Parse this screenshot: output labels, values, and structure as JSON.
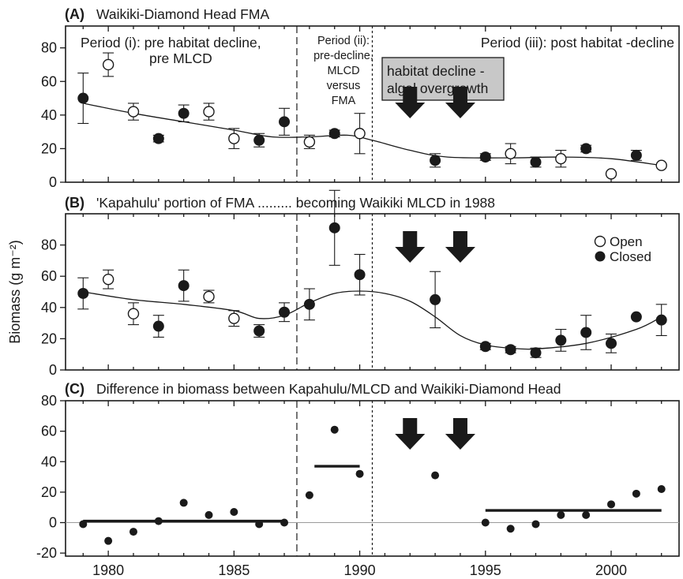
{
  "chart_data": {
    "type": "scatter",
    "y_axis_title": "Biomass (g m⁻²)",
    "x_ticks": [
      1980,
      1985,
      1990,
      1995,
      2000
    ],
    "x_range": [
      1978.3,
      2002.7
    ],
    "period_boundaries": {
      "dashed": 1987.5,
      "dotted": 1990.5
    },
    "arrow_years": [
      1992,
      1994
    ],
    "colors": {
      "ink": "#1a1a1a",
      "callout_fill": "#c8c8c8",
      "zero_line": "#9a9a9a",
      "open_marker": "#ffffff"
    },
    "legend": {
      "open": "Open",
      "closed": "Closed"
    },
    "panels": [
      {
        "letter": "(A)",
        "title": "Waikiki-Diamond Head FMA",
        "ylim": [
          0,
          93
        ],
        "y_ticks": [
          0,
          20,
          40,
          60,
          80
        ],
        "period_labels": {
          "p1_line1": "Period (i): pre habitat decline,",
          "p1_line2": "pre MLCD",
          "p2_lines": [
            "Period (ii):",
            "pre-decline,",
            "MLCD",
            "versus",
            "FMA"
          ],
          "p3": "Period (iii): post habitat -decline"
        },
        "callout": {
          "line1": "habitat decline -",
          "line2": "algal overgrowth"
        },
        "points": [
          {
            "x": 1979,
            "y": 50,
            "err": 15,
            "filled": true
          },
          {
            "x": 1980,
            "y": 70,
            "err": 7,
            "filled": false
          },
          {
            "x": 1981,
            "y": 42,
            "err": 5,
            "filled": false
          },
          {
            "x": 1982,
            "y": 26,
            "err": 2,
            "filled": true
          },
          {
            "x": 1983,
            "y": 41,
            "err": 5,
            "filled": true
          },
          {
            "x": 1984,
            "y": 42,
            "err": 5,
            "filled": false
          },
          {
            "x": 1985,
            "y": 26,
            "err": 6,
            "filled": false
          },
          {
            "x": 1986,
            "y": 25,
            "err": 4,
            "filled": true
          },
          {
            "x": 1987,
            "y": 36,
            "err": 8,
            "filled": true
          },
          {
            "x": 1988,
            "y": 24,
            "err": 4,
            "filled": false
          },
          {
            "x": 1989,
            "y": 29,
            "err": 2,
            "filled": true
          },
          {
            "x": 1990,
            "y": 29,
            "err": 12,
            "filled": false
          },
          {
            "x": 1993,
            "y": 13,
            "err": 4,
            "filled": true
          },
          {
            "x": 1995,
            "y": 15,
            "err": 2,
            "filled": true
          },
          {
            "x": 1996,
            "y": 17,
            "err": 6,
            "filled": false
          },
          {
            "x": 1997,
            "y": 12,
            "err": 3,
            "filled": true
          },
          {
            "x": 1998,
            "y": 14,
            "err": 5,
            "filled": false
          },
          {
            "x": 1999,
            "y": 20,
            "err": 2,
            "filled": true
          },
          {
            "x": 2000,
            "y": 5,
            "err": 0,
            "filled": false
          },
          {
            "x": 2001,
            "y": 16,
            "err": 3,
            "filled": true
          },
          {
            "x": 2002,
            "y": 10,
            "err": 0,
            "filled": false
          }
        ],
        "trend": [
          [
            1979,
            47
          ],
          [
            1981,
            41
          ],
          [
            1983,
            36
          ],
          [
            1985,
            31
          ],
          [
            1986.5,
            27
          ],
          [
            1988,
            27
          ],
          [
            1989.5,
            28
          ],
          [
            1990.5,
            25
          ],
          [
            1992,
            19
          ],
          [
            1993.5,
            15
          ],
          [
            1996,
            14.5
          ],
          [
            1998,
            15
          ],
          [
            2000,
            14
          ],
          [
            2002,
            10
          ]
        ]
      },
      {
        "letter": "(B)",
        "title": "'Kapahulu' portion of  FMA ......... becoming  Waikiki MLCD in 1988",
        "ylim": [
          0,
          100
        ],
        "y_ticks": [
          0,
          20,
          40,
          60,
          80
        ],
        "points": [
          {
            "x": 1979,
            "y": 49,
            "err": 10,
            "filled": true
          },
          {
            "x": 1980,
            "y": 58,
            "err": 6,
            "filled": false
          },
          {
            "x": 1981,
            "y": 36,
            "err": 7,
            "filled": false
          },
          {
            "x": 1982,
            "y": 28,
            "err": 7,
            "filled": true
          },
          {
            "x": 1983,
            "y": 54,
            "err": 10,
            "filled": true
          },
          {
            "x": 1984,
            "y": 47,
            "err": 4,
            "filled": false
          },
          {
            "x": 1985,
            "y": 33,
            "err": 5,
            "filled": false
          },
          {
            "x": 1986,
            "y": 25,
            "err": 4,
            "filled": true
          },
          {
            "x": 1987,
            "y": 37,
            "err": 6,
            "filled": true
          },
          {
            "x": 1988,
            "y": 42,
            "err": 10,
            "filled": true
          },
          {
            "x": 1989,
            "y": 91,
            "err": 24,
            "filled": true
          },
          {
            "x": 1990,
            "y": 61,
            "err": 13,
            "filled": true
          },
          {
            "x": 1993,
            "y": 45,
            "err": 18,
            "filled": true
          },
          {
            "x": 1995,
            "y": 15,
            "err": 2,
            "filled": true
          },
          {
            "x": 1996,
            "y": 13,
            "err": 2,
            "filled": true
          },
          {
            "x": 1997,
            "y": 11,
            "err": 3,
            "filled": true
          },
          {
            "x": 1998,
            "y": 19,
            "err": 7,
            "filled": true
          },
          {
            "x": 1999,
            "y": 24,
            "err": 11,
            "filled": true
          },
          {
            "x": 2000,
            "y": 17,
            "err": 6,
            "filled": true
          },
          {
            "x": 2001,
            "y": 34,
            "err": 0,
            "filled": true
          },
          {
            "x": 2002,
            "y": 32,
            "err": 10,
            "filled": true
          }
        ],
        "trend": [
          [
            1979,
            50
          ],
          [
            1981,
            45
          ],
          [
            1983,
            42
          ],
          [
            1985,
            38
          ],
          [
            1986,
            33
          ],
          [
            1987,
            35
          ],
          [
            1988,
            43
          ],
          [
            1989,
            49
          ],
          [
            1990,
            50.5
          ],
          [
            1991,
            49
          ],
          [
            1992,
            44
          ],
          [
            1993,
            34
          ],
          [
            1994,
            22
          ],
          [
            1995,
            16
          ],
          [
            1996,
            14
          ],
          [
            1997,
            13.5
          ],
          [
            1999,
            17
          ],
          [
            2001,
            26
          ],
          [
            2002,
            34
          ]
        ]
      },
      {
        "letter": "(C)",
        "title": "Difference in biomass between Kapahulu/MLCD and Waikiki-Diamond Head",
        "ylim": [
          -22,
          80
        ],
        "y_ticks": [
          -20,
          0,
          20,
          40,
          60,
          80
        ],
        "points": [
          {
            "x": 1979,
            "y": -1
          },
          {
            "x": 1980,
            "y": -12
          },
          {
            "x": 1981,
            "y": -6
          },
          {
            "x": 1982,
            "y": 1
          },
          {
            "x": 1983,
            "y": 13
          },
          {
            "x": 1984,
            "y": 5
          },
          {
            "x": 1985,
            "y": 7
          },
          {
            "x": 1986,
            "y": -1
          },
          {
            "x": 1987,
            "y": 0
          },
          {
            "x": 1988,
            "y": 18
          },
          {
            "x": 1989,
            "y": 61
          },
          {
            "x": 1990,
            "y": 32
          },
          {
            "x": 1993,
            "y": 31
          },
          {
            "x": 1995,
            "y": 0
          },
          {
            "x": 1996,
            "y": -4
          },
          {
            "x": 1997,
            "y": -1
          },
          {
            "x": 1998,
            "y": 5
          },
          {
            "x": 1999,
            "y": 5
          },
          {
            "x": 2000,
            "y": 12
          },
          {
            "x": 2001,
            "y": 19
          },
          {
            "x": 2002,
            "y": 22
          }
        ],
        "mean_lines": [
          {
            "x0": 1979,
            "x1": 1987,
            "y": 1
          },
          {
            "x0": 1988.2,
            "x1": 1990,
            "y": 37
          },
          {
            "x0": 1995,
            "x1": 2002,
            "y": 8
          }
        ],
        "zero_line": 0
      }
    ]
  }
}
